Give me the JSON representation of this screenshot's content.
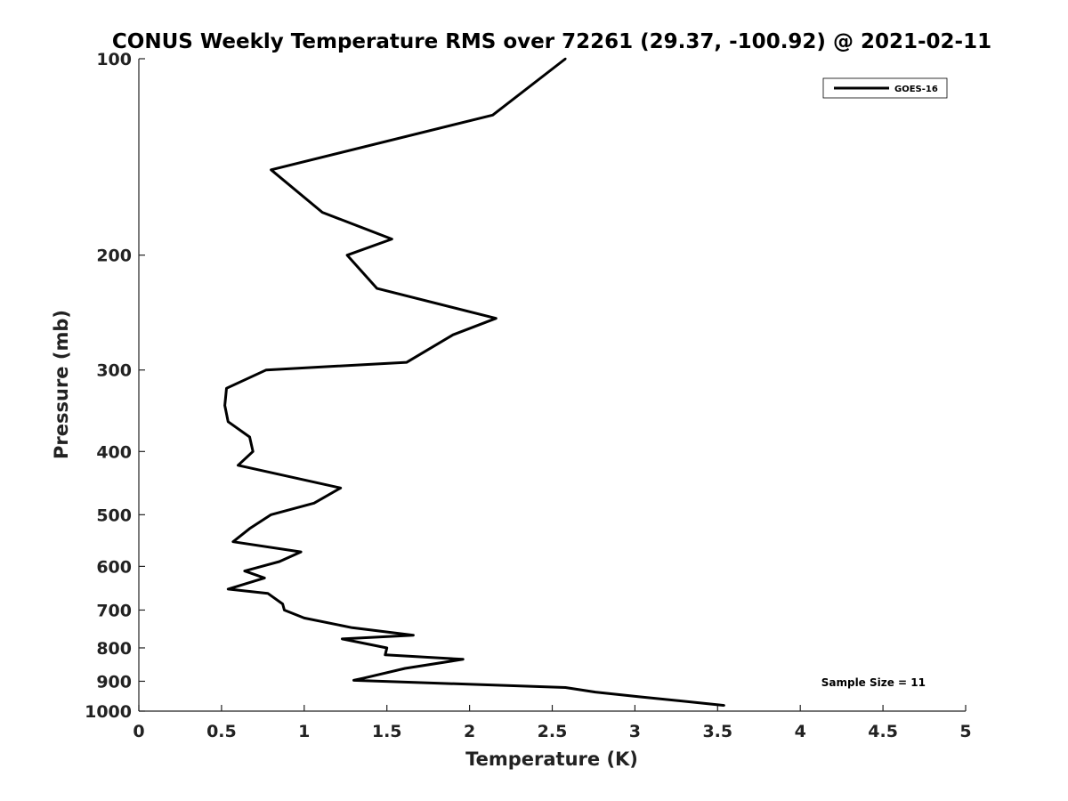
{
  "chart_data": {
    "type": "line",
    "title": "CONUS Weekly Temperature RMS over 72261 (29.37, -100.92) @ 2021-02-11",
    "xlabel": "Temperature (K)",
    "ylabel": "Pressure (mb)",
    "xlim": [
      0,
      5
    ],
    "ylim": [
      100,
      1000
    ],
    "yscale": "log",
    "y_reversed": true,
    "grid": false,
    "x_ticks": [
      0,
      0.5,
      1,
      1.5,
      2,
      2.5,
      3,
      3.5,
      4,
      4.5,
      5
    ],
    "x_tick_labels": [
      "0",
      "0.5",
      "1",
      "1.5",
      "2",
      "2.5",
      "3",
      "3.5",
      "4",
      "4.5",
      "5"
    ],
    "y_ticks": [
      100,
      200,
      300,
      400,
      500,
      600,
      700,
      800,
      900,
      1000
    ],
    "y_tick_labels": [
      "100",
      "200",
      "300",
      "400",
      "500",
      "600",
      "700",
      "800",
      "900",
      "1000"
    ],
    "legend": {
      "position": "top-right",
      "entries": [
        "GOES-16"
      ]
    },
    "annotation": "Sample Size = 11",
    "series": [
      {
        "name": "GOES-16",
        "color": "#000000",
        "x": [
          2.58,
          2.14,
          0.8,
          1.11,
          1.53,
          1.26,
          1.44,
          2.16,
          1.9,
          1.74,
          1.62,
          0.77,
          0.53,
          0.52,
          0.54,
          0.67,
          0.69,
          0.6,
          1.22,
          1.06,
          0.8,
          0.67,
          0.57,
          0.98,
          0.85,
          0.64,
          0.76,
          0.54,
          0.78,
          0.87,
          0.88,
          1.0,
          1.29,
          1.66,
          1.23,
          1.5,
          1.49,
          1.96,
          1.61,
          1.36,
          1.3,
          2.58,
          2.76,
          3.02,
          3.54
        ],
        "y": [
          100,
          122,
          148,
          172,
          189,
          200,
          225,
          250,
          265,
          280,
          292,
          300,
          320,
          340,
          360,
          380,
          400,
          420,
          455,
          480,
          500,
          525,
          550,
          570,
          590,
          610,
          625,
          650,
          660,
          685,
          700,
          720,
          745,
          765,
          775,
          800,
          820,
          833,
          860,
          890,
          897,
          920,
          935,
          950,
          980
        ]
      }
    ]
  }
}
